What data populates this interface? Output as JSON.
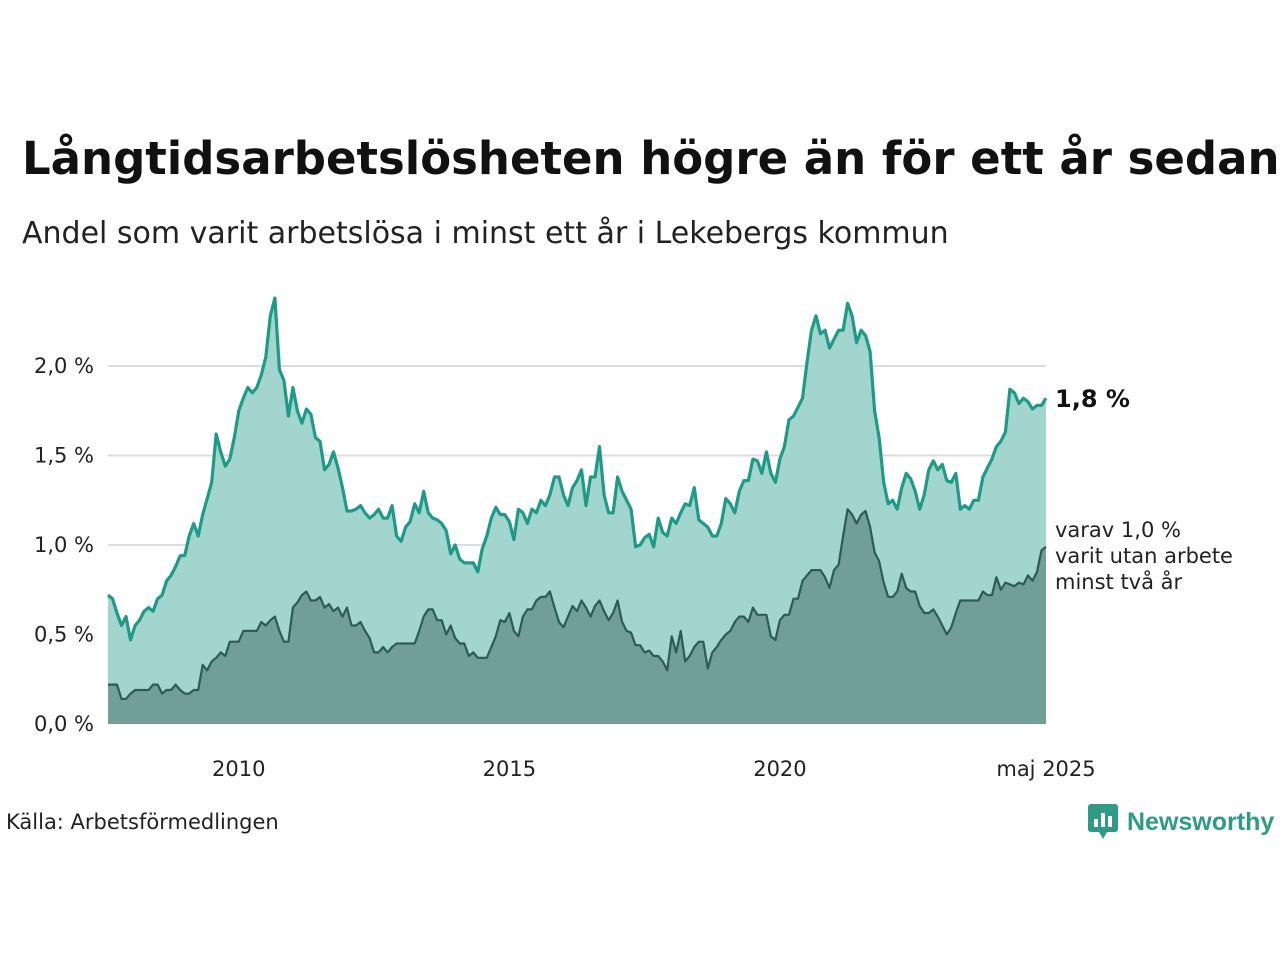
{
  "title": "Långtidsarbetslösheten högre än för ett år sedan",
  "subtitle": "Andel som varit arbetslösa i minst ett år i Lekebergs kommun",
  "source": "Källa: Arbetsförmedlingen",
  "brand": {
    "name": "Newsworthy",
    "icon": "newsworthy-logo-icon"
  },
  "colors": {
    "total_line": "#1f9a87",
    "total_fill": "#a3d5cf",
    "sub_line": "#2c5c55",
    "sub_fill": "#719e97",
    "grid": "#dddddd",
    "text": "#111111",
    "brand": "#2f9a86"
  },
  "chart_data": {
    "type": "area",
    "x_axis": {
      "start": "2008-01",
      "end": "2025-05",
      "tick_labels": [
        "2010",
        "2015",
        "2020",
        "maj 2025"
      ],
      "ticks": [
        "2010-06",
        "2015-06",
        "2020-06",
        "2025-05"
      ]
    },
    "y_axis": {
      "ylim": [
        0,
        2.4
      ],
      "tick_values": [
        0,
        0.5,
        1.0,
        1.5,
        2.0
      ],
      "tick_labels": [
        "0,0 %",
        "0,5 %",
        "1,0 %",
        "1,5 %",
        "2,0 %"
      ],
      "unit": "%"
    },
    "grid": "horizontal",
    "series": [
      {
        "key": "total",
        "end_label": "1,8 %",
        "values": [
          0.72,
          0.7,
          0.62,
          0.55,
          0.6,
          0.47,
          0.55,
          0.58,
          0.63,
          0.65,
          0.63,
          0.7,
          0.72,
          0.8,
          0.83,
          0.88,
          0.94,
          0.94,
          1.05,
          1.12,
          1.05,
          1.17,
          1.26,
          1.35,
          1.62,
          1.52,
          1.44,
          1.48,
          1.6,
          1.75,
          1.82,
          1.88,
          1.85,
          1.88,
          1.95,
          2.05,
          2.28,
          2.38,
          1.98,
          1.92,
          1.72,
          1.88,
          1.75,
          1.68,
          1.76,
          1.73,
          1.6,
          1.58,
          1.42,
          1.45,
          1.52,
          1.43,
          1.32,
          1.19,
          1.19,
          1.2,
          1.22,
          1.18,
          1.15,
          1.17,
          1.2,
          1.15,
          1.15,
          1.22,
          1.05,
          1.02,
          1.1,
          1.13,
          1.23,
          1.18,
          1.3,
          1.18,
          1.15,
          1.14,
          1.12,
          1.08,
          0.95,
          1.0,
          0.92,
          0.9,
          0.9,
          0.9,
          0.85,
          0.98,
          1.05,
          1.15,
          1.21,
          1.17,
          1.17,
          1.13,
          1.03,
          1.2,
          1.18,
          1.12,
          1.2,
          1.18,
          1.25,
          1.22,
          1.28,
          1.38,
          1.38,
          1.28,
          1.22,
          1.32,
          1.36,
          1.42,
          1.22,
          1.38,
          1.38,
          1.55,
          1.28,
          1.18,
          1.18,
          1.38,
          1.3,
          1.25,
          1.2,
          0.99,
          1.0,
          1.04,
          1.06,
          0.99,
          1.15,
          1.07,
          1.05,
          1.15,
          1.12,
          1.18,
          1.23,
          1.22,
          1.32,
          1.14,
          1.12,
          1.1,
          1.05,
          1.05,
          1.12,
          1.26,
          1.23,
          1.18,
          1.3,
          1.36,
          1.36,
          1.48,
          1.47,
          1.4,
          1.52,
          1.4,
          1.35,
          1.48,
          1.55,
          1.7,
          1.72,
          1.77,
          1.82,
          2.02,
          2.2,
          2.28,
          2.18,
          2.2,
          2.1,
          2.15,
          2.2,
          2.2,
          2.35,
          2.28,
          2.13,
          2.2,
          2.17,
          2.08,
          1.75,
          1.6,
          1.35,
          1.23,
          1.25,
          1.2,
          1.32,
          1.4,
          1.37,
          1.3,
          1.2,
          1.28,
          1.42,
          1.47,
          1.42,
          1.45,
          1.36,
          1.35,
          1.4,
          1.2,
          1.22,
          1.2,
          1.25,
          1.25,
          1.38,
          1.43,
          1.48,
          1.55,
          1.58,
          1.63,
          1.87,
          1.85,
          1.79,
          1.82,
          1.8,
          1.76,
          1.78,
          1.78,
          1.82
        ]
      },
      {
        "key": "long",
        "label_lines": [
          "varav 1,0 %",
          "varit utan arbete",
          "minst två år"
        ],
        "values": [
          0.22,
          0.22,
          0.22,
          0.14,
          0.14,
          0.17,
          0.19,
          0.19,
          0.19,
          0.19,
          0.22,
          0.22,
          0.17,
          0.19,
          0.19,
          0.22,
          0.19,
          0.17,
          0.17,
          0.19,
          0.19,
          0.33,
          0.3,
          0.35,
          0.37,
          0.4,
          0.38,
          0.46,
          0.46,
          0.46,
          0.52,
          0.52,
          0.52,
          0.52,
          0.57,
          0.55,
          0.58,
          0.6,
          0.52,
          0.46,
          0.46,
          0.65,
          0.68,
          0.72,
          0.74,
          0.69,
          0.69,
          0.71,
          0.65,
          0.67,
          0.63,
          0.65,
          0.6,
          0.65,
          0.55,
          0.55,
          0.57,
          0.52,
          0.48,
          0.4,
          0.4,
          0.43,
          0.4,
          0.43,
          0.45,
          0.45,
          0.45,
          0.45,
          0.45,
          0.52,
          0.6,
          0.64,
          0.64,
          0.58,
          0.58,
          0.5,
          0.55,
          0.48,
          0.45,
          0.45,
          0.38,
          0.4,
          0.37,
          0.37,
          0.37,
          0.43,
          0.49,
          0.58,
          0.57,
          0.62,
          0.52,
          0.49,
          0.6,
          0.64,
          0.64,
          0.69,
          0.71,
          0.71,
          0.74,
          0.65,
          0.57,
          0.54,
          0.6,
          0.66,
          0.63,
          0.69,
          0.65,
          0.6,
          0.66,
          0.69,
          0.63,
          0.58,
          0.62,
          0.69,
          0.57,
          0.52,
          0.51,
          0.44,
          0.44,
          0.4,
          0.41,
          0.38,
          0.38,
          0.35,
          0.3,
          0.49,
          0.4,
          0.52,
          0.35,
          0.38,
          0.43,
          0.46,
          0.46,
          0.31,
          0.4,
          0.43,
          0.47,
          0.5,
          0.52,
          0.57,
          0.6,
          0.6,
          0.57,
          0.65,
          0.61,
          0.61,
          0.61,
          0.49,
          0.47,
          0.58,
          0.61,
          0.61,
          0.7,
          0.7,
          0.8,
          0.83,
          0.86,
          0.86,
          0.86,
          0.82,
          0.76,
          0.86,
          0.89,
          1.05,
          1.2,
          1.17,
          1.12,
          1.17,
          1.19,
          1.1,
          0.96,
          0.91,
          0.79,
          0.71,
          0.71,
          0.74,
          0.84,
          0.76,
          0.74,
          0.74,
          0.66,
          0.62,
          0.62,
          0.64,
          0.6,
          0.55,
          0.5,
          0.54,
          0.62,
          0.69,
          0.69,
          0.69,
          0.69,
          0.69,
          0.74,
          0.72,
          0.72,
          0.82,
          0.75,
          0.79,
          0.78,
          0.77,
          0.79,
          0.78,
          0.83,
          0.8,
          0.85,
          0.97,
          0.99
        ]
      }
    ]
  }
}
